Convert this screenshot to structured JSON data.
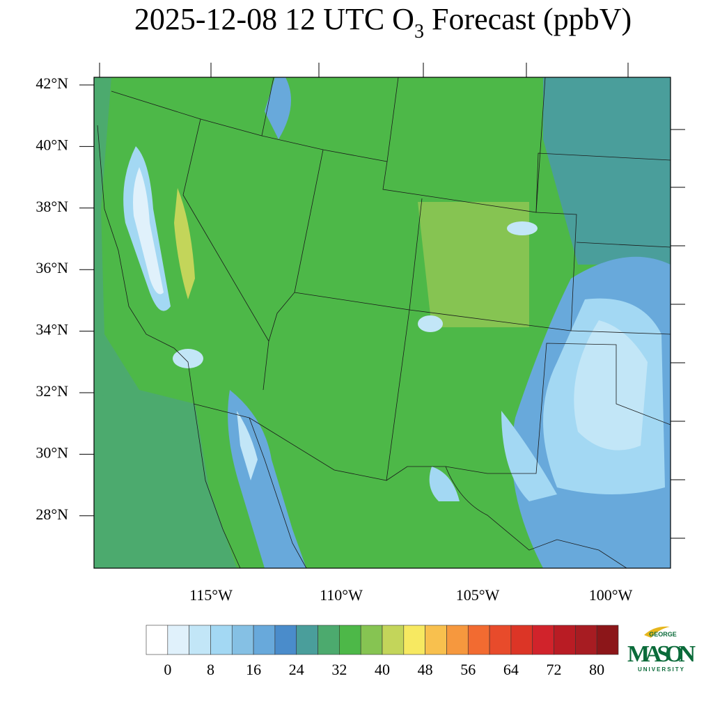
{
  "title": {
    "before": "2025-12-08 12 UTC O",
    "subscript": "3",
    "after": " Forecast (ppbV)"
  },
  "map": {
    "lat_labels": [
      "42°N",
      "40°N",
      "38°N",
      "36°N",
      "34°N",
      "32°N",
      "30°N",
      "28°N"
    ],
    "lon_labels": [
      "115°W",
      "110°W",
      "105°W",
      "100°W"
    ]
  },
  "colorbar": {
    "ticks": [
      0,
      8,
      16,
      24,
      32,
      40,
      48,
      56,
      64,
      72,
      80
    ],
    "colors": [
      "#ffffff",
      "#e0f1fb",
      "#c2e6f7",
      "#a3d8f3",
      "#85c0e4",
      "#68a9db",
      "#4a8ccb",
      "#4a9e9b",
      "#4caa6e",
      "#4db848",
      "#86c452",
      "#c3d55a",
      "#f7e961",
      "#f8c04e",
      "#f6983e",
      "#f26b31",
      "#e84b2b",
      "#dc3526",
      "#d1232b",
      "#b91c24",
      "#a71c22",
      "#8c1619"
    ]
  },
  "logo": {
    "top": "GEORGE",
    "main": "MASON",
    "bottom": "UNIVERSITY"
  }
}
